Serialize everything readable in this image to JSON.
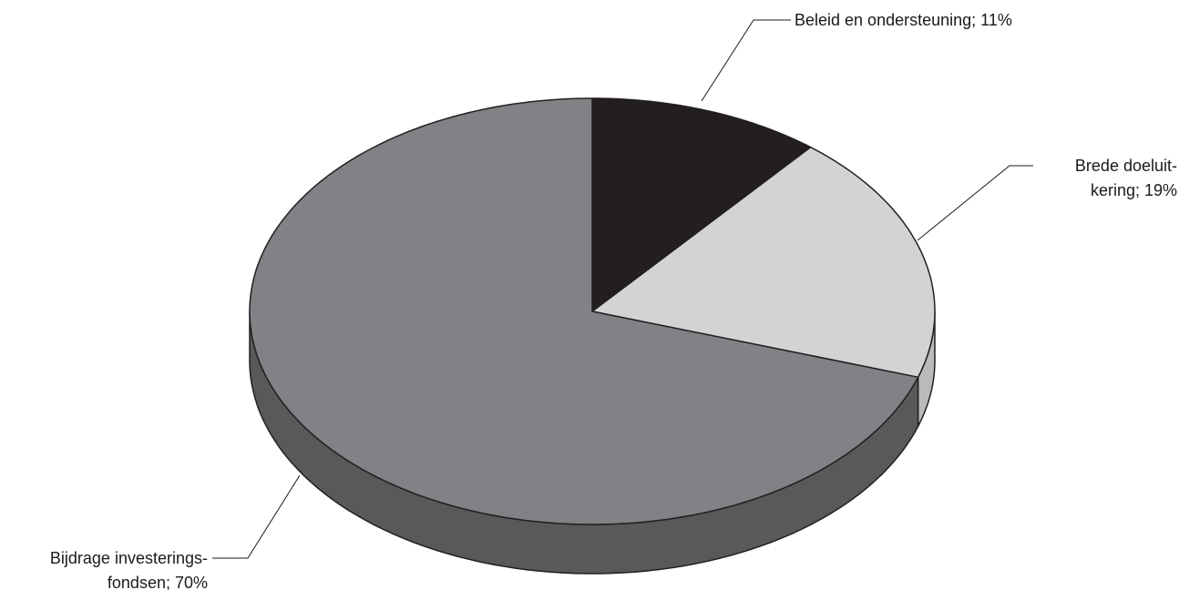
{
  "chart_data": {
    "type": "pie",
    "title": "",
    "categories": [
      "Beleid en ondersteuning",
      "Brede doeluitkering",
      "Bijdrage investeringsfondsen"
    ],
    "values": [
      11,
      19,
      70
    ],
    "unit": "%",
    "labels": [
      [
        "Beleid en ondersteuning; 11%"
      ],
      [
        "Brede doel­uit-",
        "kering; 19%"
      ],
      [
        "Bijdrage investerings-",
        "fondsen; 70%"
      ]
    ],
    "colors": [
      "#231f20",
      "#d2d3d5",
      "#808285"
    ],
    "side_colors": [
      "#231f20",
      "#b9babc",
      "#58595b"
    ],
    "style": "3d",
    "start": "12 o'clock",
    "direction": "clockwise",
    "legend": "none (direct labels)"
  }
}
